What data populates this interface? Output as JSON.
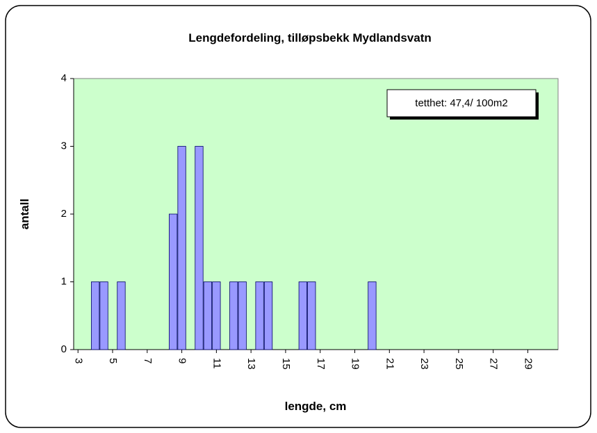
{
  "chart_data": {
    "type": "bar",
    "title": "Lengdefordeling, tilløpsbekk Mydlandsvatn",
    "x_label": "lengde, cm",
    "y_label": "antall",
    "annotation": "tetthet: 47,4/ 100m2",
    "categories": [
      "3",
      null,
      null,
      null,
      "5",
      null,
      null,
      null,
      "7",
      null,
      null,
      null,
      "9",
      null,
      null,
      null,
      "11",
      null,
      null,
      null,
      "13",
      null,
      null,
      null,
      "15",
      null,
      null,
      null,
      "17",
      null,
      null,
      null,
      "19",
      null,
      null,
      null,
      "21",
      null,
      null,
      null,
      "23",
      null,
      null,
      null,
      "25",
      null,
      null,
      null,
      "27",
      null,
      null,
      null,
      "29",
      null,
      null,
      null
    ],
    "values": [
      0,
      0,
      1,
      1,
      0,
      1,
      0,
      0,
      0,
      0,
      0,
      2,
      3,
      0,
      3,
      1,
      1,
      0,
      1,
      1,
      0,
      1,
      1,
      0,
      0,
      0,
      1,
      1,
      0,
      0,
      0,
      0,
      0,
      0,
      1,
      0,
      0,
      0,
      0,
      0,
      0,
      0,
      0,
      0,
      0,
      0,
      0,
      0,
      0,
      0,
      0,
      0,
      0,
      0,
      0,
      0
    ],
    "color": "#9999ff",
    "ylim": [
      0,
      4
    ],
    "yticks": [
      0,
      1,
      2,
      3,
      4
    ],
    "grid": false
  }
}
